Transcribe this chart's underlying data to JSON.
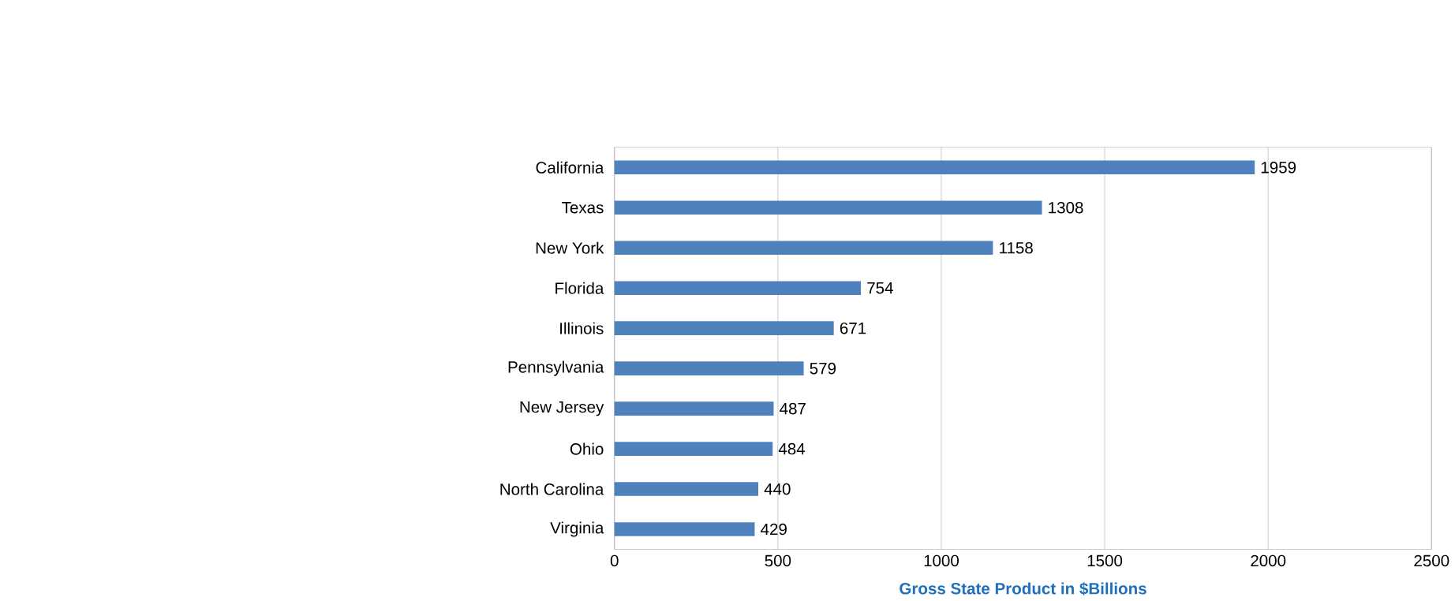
{
  "chart_data": {
    "type": "bar",
    "orientation": "horizontal",
    "xlabel": "Gross State Product in $Billions",
    "categories": [
      "California",
      "Texas",
      "New York",
      "Florida",
      "Illinois",
      "Pennsylvania",
      "New Jersey",
      "Ohio",
      "North Carolina",
      "Virginia"
    ],
    "values": [
      1959,
      1308,
      1158,
      754,
      671,
      579,
      487,
      484,
      440,
      429
    ],
    "color": "#4f81bd",
    "xlim": [
      0,
      2500
    ],
    "xticks": [
      0,
      500,
      1000,
      1500,
      2000,
      2500
    ],
    "grid": "x",
    "data_labels": true
  }
}
